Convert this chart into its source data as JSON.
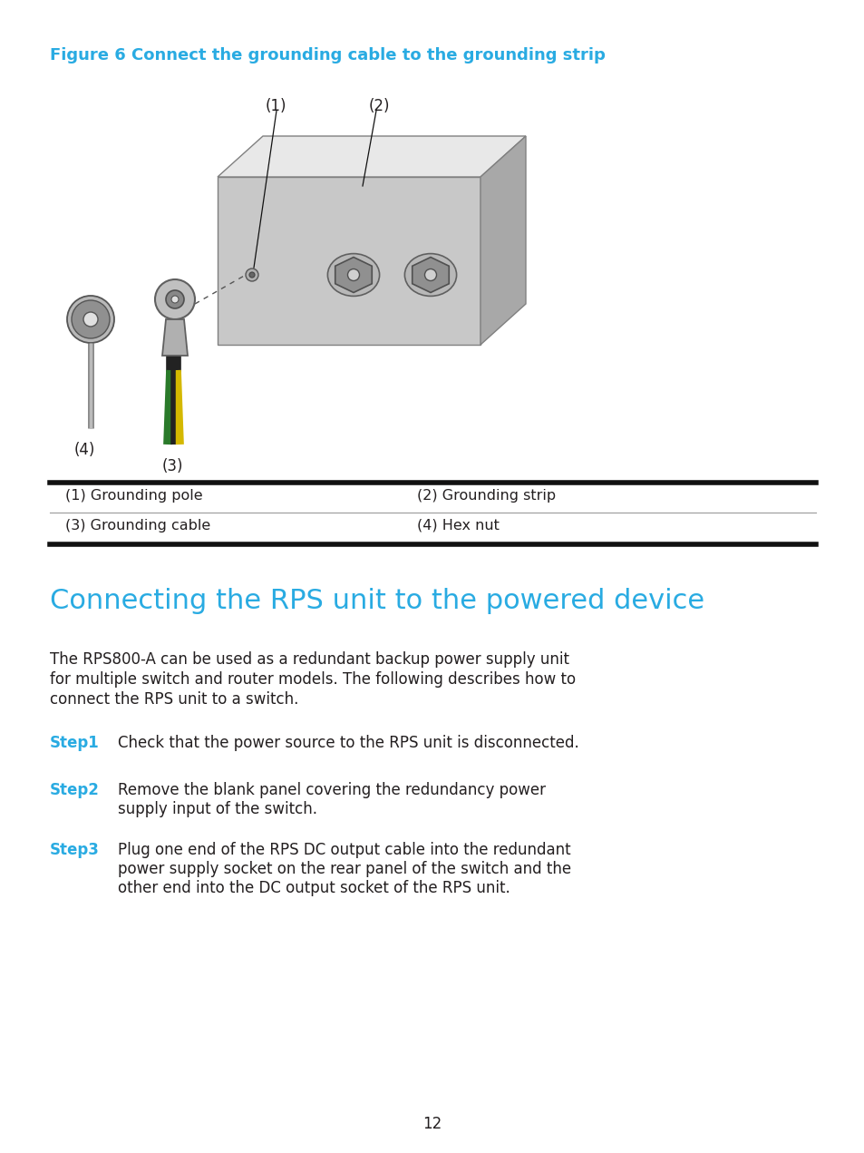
{
  "figure_title": "Figure 6 Connect the grounding cable to the grounding strip",
  "figure_title_color": "#29abe2",
  "section_title": "Connecting the RPS unit to the powered device",
  "section_title_color": "#29abe2",
  "table_rows": [
    [
      "(1) Grounding pole",
      "(2) Grounding strip"
    ],
    [
      "(3) Grounding cable",
      "(4) Hex nut"
    ]
  ],
  "steps": [
    {
      "label": "Step1",
      "text": "Check that the power source to the RPS unit is disconnected."
    },
    {
      "label": "Step2",
      "text_lines": [
        "Remove the blank panel covering the redundancy power",
        "supply input of the switch."
      ]
    },
    {
      "label": "Step3",
      "text_lines": [
        "Plug one end of the RPS DC output cable into the redundant",
        "power supply socket on the rear panel of the switch and the",
        "other end into the DC output socket of the RPS unit."
      ]
    }
  ],
  "body_lines": [
    "The RPS800-A can be used as a redundant backup power supply unit",
    "for multiple switch and router models. The following describes how to",
    "connect the RPS unit to a switch."
  ],
  "step_color": "#29abe2",
  "page_number": "12",
  "bg_color": "#ffffff",
  "text_color": "#231f20"
}
